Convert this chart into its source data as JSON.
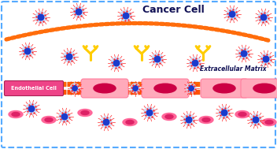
{
  "bg_color": "#ffffff",
  "border_color": "#55aaff",
  "title_cancer": "Cancer Cell",
  "title_extra": "Extracellular Matrix",
  "title_endo": "Endothelial Cell",
  "fig_width": 3.52,
  "fig_height": 1.89,
  "dpi": 100,
  "nano_outer": "#c8deff",
  "nano_inner": "#1a3bcc",
  "nano_spike": "#ff2222",
  "membrane_color": "#ff6600",
  "antibody_color": "#ffcc00",
  "rbc_outer": "#ff88aa",
  "rbc_inner": "#cc1144",
  "endo_pink": "#ff7799",
  "endo_dark": "#cc0044",
  "endo_label_bg": "#ee4488",
  "small_rbc_color": "#ff6699",
  "small_rbc_inner": "#dd2266"
}
